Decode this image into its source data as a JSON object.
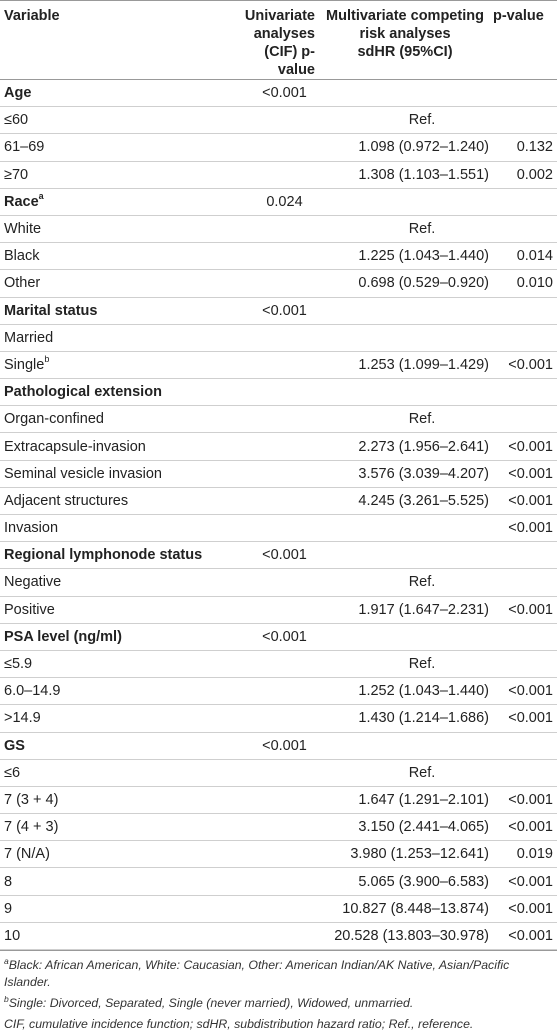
{
  "headers": {
    "variable": "Variable",
    "univariate_l1": "Univariate",
    "univariate_l2": "analyses",
    "univariate_l3": "(CIF) p-value",
    "multi_l1": "Multivariate competing",
    "multi_l2": "risk analyses",
    "multi_l3": "sdHR (95%CI)",
    "pvalue": "p-value"
  },
  "rows": [
    {
      "label": "Age",
      "bold": true,
      "sup": "",
      "uni": "<0.001",
      "sdhr": "",
      "p": ""
    },
    {
      "label": "≤60",
      "bold": false,
      "sup": "",
      "uni": "",
      "sdhr": "Ref.",
      "p": ""
    },
    {
      "label": "61–69",
      "bold": false,
      "sup": "",
      "uni": "",
      "sdhr": "1.098 (0.972–1.240)",
      "p": "0.132"
    },
    {
      "label": "≥70",
      "bold": false,
      "sup": "",
      "uni": "",
      "sdhr": "1.308 (1.103–1.551)",
      "p": "0.002"
    },
    {
      "label": "Race",
      "bold": true,
      "sup": "a",
      "uni": "0.024",
      "sdhr": "",
      "p": ""
    },
    {
      "label": "White",
      "bold": false,
      "sup": "",
      "uni": "",
      "sdhr": "Ref.",
      "p": ""
    },
    {
      "label": "Black",
      "bold": false,
      "sup": "",
      "uni": "",
      "sdhr": "1.225 (1.043–1.440)",
      "p": "0.014"
    },
    {
      "label": "Other",
      "bold": false,
      "sup": "",
      "uni": "",
      "sdhr": "0.698 (0.529–0.920)",
      "p": "0.010"
    },
    {
      "label": "Marital status",
      "bold": true,
      "sup": "",
      "uni": "<0.001",
      "sdhr": "",
      "p": ""
    },
    {
      "label": "Married",
      "bold": false,
      "sup": "",
      "uni": "",
      "sdhr": "",
      "p": ""
    },
    {
      "label": "Single",
      "bold": false,
      "sup": "b",
      "uni": "",
      "sdhr": "1.253 (1.099–1.429)",
      "p": "<0.001"
    },
    {
      "label": "Pathological extension",
      "bold": true,
      "sup": "",
      "uni": "",
      "sdhr": "",
      "p": ""
    },
    {
      "label": "Organ-confined",
      "bold": false,
      "sup": "",
      "uni": "",
      "sdhr": "Ref.",
      "p": ""
    },
    {
      "label": "Extracapsule-invasion",
      "bold": false,
      "sup": "",
      "uni": "",
      "sdhr": "2.273 (1.956–2.641)",
      "p": "<0.001"
    },
    {
      "label": "Seminal vesicle invasion",
      "bold": false,
      "sup": "",
      "uni": "",
      "sdhr": "3.576 (3.039–4.207)",
      "p": "<0.001"
    },
    {
      "label": "Adjacent structures",
      "bold": false,
      "sup": "",
      "uni": "",
      "sdhr": "4.245 (3.261–5.525)",
      "p": "<0.001"
    },
    {
      "label": "Invasion",
      "bold": false,
      "sup": "",
      "uni": "",
      "sdhr": "",
      "p": "<0.001"
    },
    {
      "label": "Regional lymphonode status",
      "bold": true,
      "sup": "",
      "uni": "<0.001",
      "sdhr": "",
      "p": ""
    },
    {
      "label": "Negative",
      "bold": false,
      "sup": "",
      "uni": "",
      "sdhr": "Ref.",
      "p": ""
    },
    {
      "label": "Positive",
      "bold": false,
      "sup": "",
      "uni": "",
      "sdhr": "1.917 (1.647–2.231)",
      "p": "<0.001"
    },
    {
      "label": "PSA level (ng/ml)",
      "bold": true,
      "sup": "",
      "uni": "<0.001",
      "sdhr": "",
      "p": ""
    },
    {
      "label": "≤5.9",
      "bold": false,
      "sup": "",
      "uni": "",
      "sdhr": "Ref.",
      "p": ""
    },
    {
      "label": "6.0–14.9",
      "bold": false,
      "sup": "",
      "uni": "",
      "sdhr": "1.252 (1.043–1.440)",
      "p": "<0.001"
    },
    {
      "label": ">14.9",
      "bold": false,
      "sup": "",
      "uni": "",
      "sdhr": "1.430 (1.214–1.686)",
      "p": "<0.001"
    },
    {
      "label": "GS",
      "bold": true,
      "sup": "",
      "uni": "<0.001",
      "sdhr": "",
      "p": ""
    },
    {
      "label": "≤6",
      "bold": false,
      "sup": "",
      "uni": "",
      "sdhr": "Ref.",
      "p": ""
    },
    {
      "label": "7 (3 + 4)",
      "bold": false,
      "sup": "",
      "uni": "",
      "sdhr": "1.647 (1.291–2.101)",
      "p": "<0.001"
    },
    {
      "label": "7 (4 + 3)",
      "bold": false,
      "sup": "",
      "uni": "",
      "sdhr": "3.150 (2.441–4.065)",
      "p": "<0.001"
    },
    {
      "label": "7 (N/A)",
      "bold": false,
      "sup": "",
      "uni": "",
      "sdhr": "3.980 (1.253–12.641)",
      "p": "0.019"
    },
    {
      "label": "8",
      "bold": false,
      "sup": "",
      "uni": "",
      "sdhr": "5.065 (3.900–6.583)",
      "p": "<0.001"
    },
    {
      "label": "9",
      "bold": false,
      "sup": "",
      "uni": "",
      "sdhr": "10.827 (8.448–13.874)",
      "p": "<0.001"
    },
    {
      "label": "10",
      "bold": false,
      "sup": "",
      "uni": "",
      "sdhr": "20.528 (13.803–30.978)",
      "p": "<0.001"
    }
  ],
  "footnotes": [
    {
      "mark": "a",
      "text": "Black: African American, White: Caucasian, Other: American Indian/AK Native, Asian/Pacific Islander."
    },
    {
      "mark": "b",
      "text": "Single: Divorced, Separated, Single (never married), Widowed, unmarried."
    },
    {
      "mark": "",
      "text": "CIF, cumulative incidence function; sdHR, subdistribution hazard ratio; Ref., reference."
    }
  ]
}
